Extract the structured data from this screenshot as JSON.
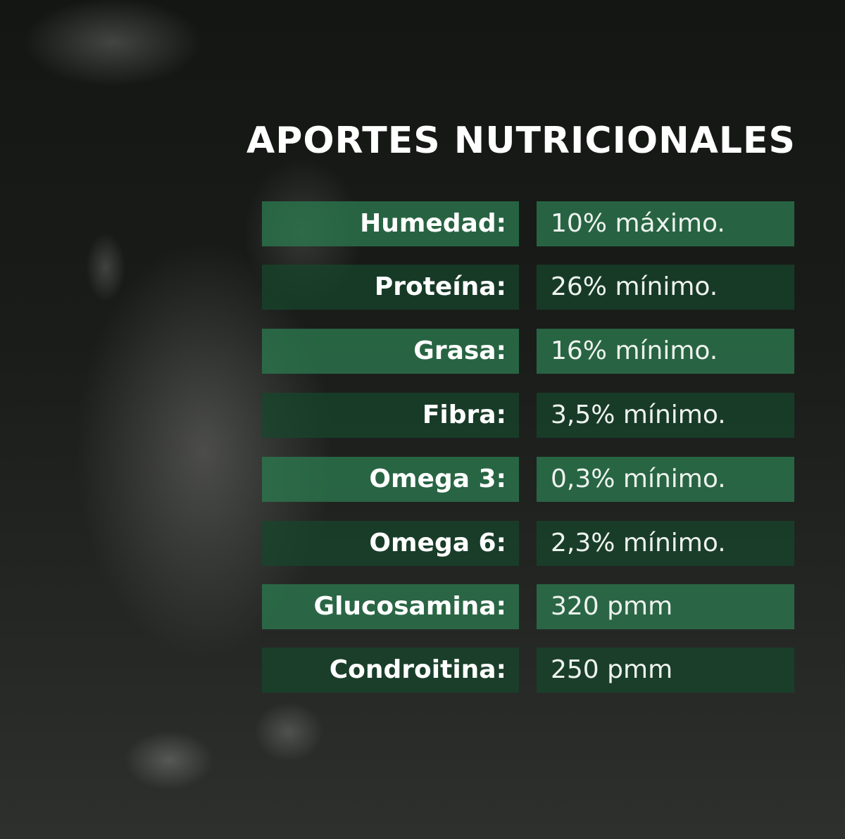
{
  "title": "APORTES NUTRICIONALES",
  "colors": {
    "row_light": "#2c784e",
    "row_dark": "#16462c",
    "text": "#ffffff"
  },
  "rows": [
    {
      "label": "Humedad:",
      "value": "10% máximo."
    },
    {
      "label": "Proteína:",
      "value": "26% mínimo."
    },
    {
      "label": "Grasa:",
      "value": "16% mínimo."
    },
    {
      "label": "Fibra:",
      "value": "3,5% mínimo."
    },
    {
      "label": "Omega 3:",
      "value": "0,3% mínimo."
    },
    {
      "label": "Omega 6:",
      "value": "2,3% mínimo."
    },
    {
      "label": "Glucosamina:",
      "value": "320 pmm"
    },
    {
      "label": "Condroitina:",
      "value": "250 pmm"
    }
  ]
}
